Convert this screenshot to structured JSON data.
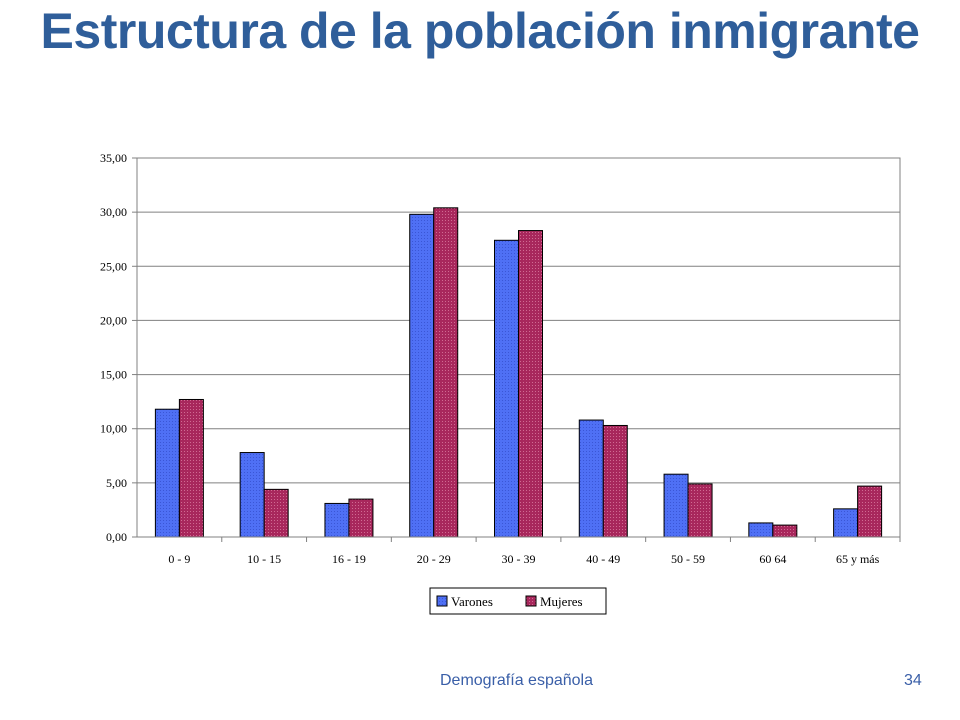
{
  "slide": {
    "title": "Estructura de la población inmigrante",
    "footer_text": "Demografía española",
    "page_number": "34"
  },
  "chart_data": {
    "type": "bar",
    "title": "",
    "xlabel": "",
    "ylabel": "",
    "ylim": [
      0,
      35
    ],
    "y_ticks": [
      "0,00",
      "5,00",
      "10,00",
      "15,00",
      "20,00",
      "25,00",
      "30,00",
      "35,00"
    ],
    "grid": true,
    "legend_position": "bottom",
    "categories": [
      "0 - 9",
      "10 - 15",
      "16 - 19",
      "20 - 29",
      "30 - 39",
      "40 - 49",
      "50 - 59",
      "60  64",
      "65 y más"
    ],
    "series": [
      {
        "name": "Varones",
        "color": "#4a6cf0",
        "values": [
          11.8,
          7.8,
          3.1,
          29.8,
          27.4,
          10.8,
          5.8,
          1.3,
          2.6
        ]
      },
      {
        "name": "Mujeres",
        "color": "#a3285a",
        "values": [
          12.7,
          4.4,
          3.5,
          30.4,
          28.3,
          10.3,
          4.9,
          1.1,
          4.7
        ]
      }
    ]
  }
}
